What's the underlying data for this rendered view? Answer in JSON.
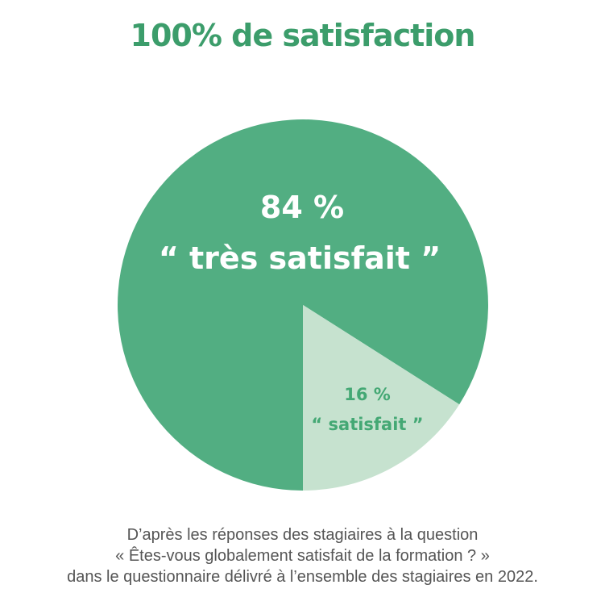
{
  "title": "100% de satisfaction",
  "colors": {
    "title": "#3c9d6b",
    "tres_satisfait": "#52ae82",
    "satisfait": "#c6e2cf",
    "small_label": "#44a874",
    "caption": "#555555"
  },
  "chart_data": {
    "type": "pie",
    "title": "100% de satisfaction",
    "slices": [
      {
        "value": 84,
        "percent_label": "84 %",
        "label": "“ très satisfait ”",
        "color": "#52ae82"
      },
      {
        "value": 16,
        "percent_label": "16 %",
        "label": "“ satisfait ”",
        "color": "#c6e2cf"
      }
    ]
  },
  "caption": {
    "line1": "D’après les réponses des stagiaires à la question",
    "line2": "« Êtes-vous globalement satisfait de la formation ? »",
    "line3": "dans le questionnaire délivré à l’ensemble des stagiaires en 2022."
  }
}
